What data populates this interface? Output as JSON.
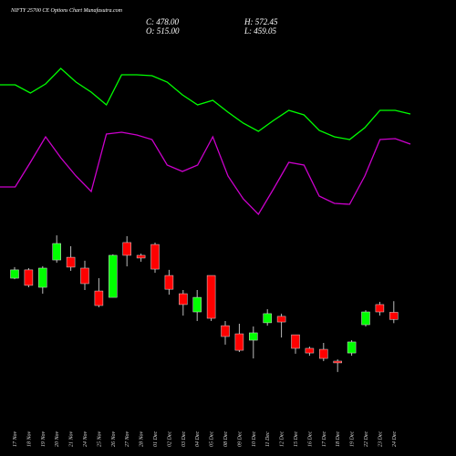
{
  "chart_data": {
    "type": "candlestick",
    "title": "NIFTY 25700  CE Options Chart Munafasutra.com",
    "ohlc_labels": [
      "C: 478.00",
      "H: 572.45",
      "O: 515.00",
      "L: 459.05"
    ],
    "categories": [
      "17 Nov",
      "18 Nov",
      "19 Nov",
      "20 Nov",
      "21 Nov",
      "24 Nov",
      "25 Nov",
      "26 Nov",
      "27 Nov",
      "28 Nov",
      "01 Dec",
      "02 Dec",
      "03 Dec",
      "04 Dec",
      "05 Dec",
      "08 Dec",
      "09 Dec",
      "10 Dec",
      "11 Dec",
      "12 Dec",
      "15 Dec",
      "16 Dec",
      "17 Dec",
      "18 Dec",
      "19 Dec",
      "22 Dec",
      "23 Dec",
      "24 Dec"
    ],
    "open": [
      691,
      734,
      644,
      785,
      799,
      743,
      625,
      592,
      875,
      809,
      865,
      705,
      611,
      517,
      705,
      446,
      404,
      371,
      461,
      494,
      399,
      329,
      324,
      263,
      305,
      451,
      555,
      515
    ],
    "close": [
      734,
      654,
      743,
      870,
      748,
      663,
      550,
      809,
      809,
      795,
      738,
      634,
      555,
      592,
      484,
      390,
      319,
      409,
      508,
      465,
      329,
      305,
      277,
      254,
      362,
      517,
      517,
      478
    ],
    "high": [
      748,
      743,
      753,
      912,
      856,
      781,
      691,
      814,
      908,
      818,
      875,
      734,
      630,
      630,
      705,
      470,
      456,
      442,
      531,
      508,
      399,
      338,
      357,
      272,
      371,
      526,
      569,
      572.45
    ],
    "low": [
      686,
      644,
      611,
      771,
      729,
      630,
      541,
      592,
      752,
      776,
      719,
      606,
      498,
      470,
      470,
      348,
      310,
      277,
      446,
      385,
      301,
      291,
      263,
      207,
      291,
      442,
      498,
      459.05
    ],
    "up_color": "#00ff00",
    "down_color": "#ff0000",
    "ylim": [
      150,
      950
    ],
    "lines": [
      {
        "color": "#00ff00",
        "values": [
          78.5,
          78.5,
          74,
          79,
          87.5,
          80,
          74.5,
          67.5,
          84,
          84,
          83.5,
          80,
          73,
          67.5,
          70,
          63.5,
          57.5,
          53,
          59,
          64.5,
          62,
          53.5,
          50,
          48.5,
          55,
          64.5,
          64.5,
          62.5
        ]
      },
      {
        "color": "#cc00cc",
        "values": [
          22.5,
          22.5,
          36,
          50,
          38.5,
          28.5,
          20,
          51.5,
          52.5,
          51,
          48.5,
          34.5,
          31,
          34.5,
          50,
          28.5,
          16,
          7.5,
          21.5,
          36,
          34.5,
          17.5,
          13.5,
          13,
          28.5,
          48.5,
          49,
          46
        ]
      }
    ],
    "lines_ylim": [
      0,
      100
    ]
  }
}
